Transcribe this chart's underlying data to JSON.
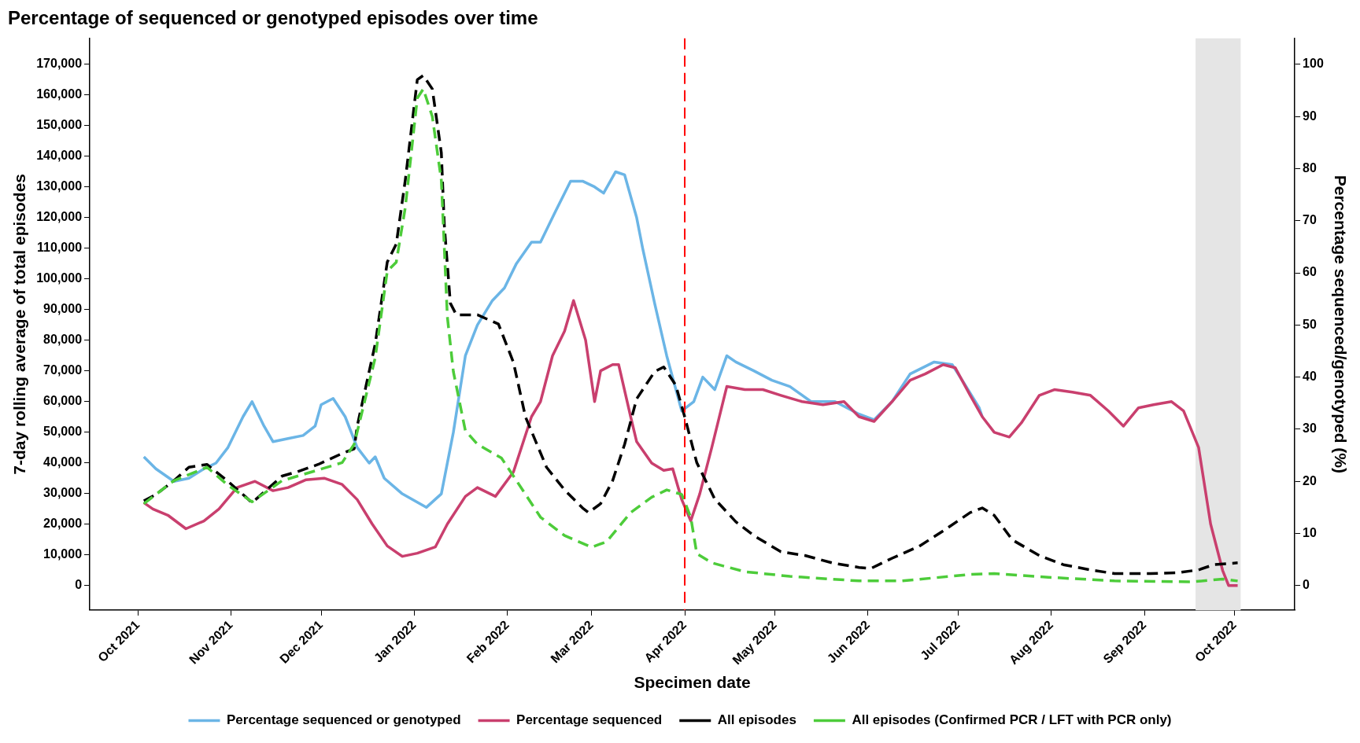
{
  "chart_data": {
    "type": "line",
    "title": "Percentage of sequenced or genotyped episodes over time",
    "xlabel": "Specimen date",
    "ylabel": "7-day rolling average of total episodes",
    "y2label": "Percentage sequenced/genotyped (%)",
    "legend": "bottom",
    "marker": "none",
    "grid": false,
    "xlim": [
      "2021-09-15",
      "2022-10-21"
    ],
    "xticks": [
      {
        "value": "2021-10-01",
        "label": "Oct 2021"
      },
      {
        "value": "2021-11-01",
        "label": "Nov 2021"
      },
      {
        "value": "2021-12-01",
        "label": "Dec 2021"
      },
      {
        "value": "2022-01-01",
        "label": "Jan 2022"
      },
      {
        "value": "2022-02-01",
        "label": "Feb 2022"
      },
      {
        "value": "2022-03-01",
        "label": "Mar 2022"
      },
      {
        "value": "2022-04-01",
        "label": "Apr 2022"
      },
      {
        "value": "2022-05-01",
        "label": "May 2022"
      },
      {
        "value": "2022-06-01",
        "label": "Jun 2022"
      },
      {
        "value": "2022-07-01",
        "label": "Jul 2022"
      },
      {
        "value": "2022-08-01",
        "label": "Aug 2022"
      },
      {
        "value": "2022-09-01",
        "label": "Sep 2022"
      },
      {
        "value": "2022-10-01",
        "label": "Oct 2022"
      }
    ],
    "ylim": [
      -8000,
      178500
    ],
    "yticks": [
      0,
      {
        "value": 10000,
        "label": "10,000"
      },
      {
        "value": 20000,
        "label": "20,000"
      },
      {
        "value": 30000,
        "label": "30,000"
      },
      {
        "value": 40000,
        "label": "40,000"
      },
      {
        "value": 50000,
        "label": "50,000"
      },
      {
        "value": 60000,
        "label": "60,000"
      },
      {
        "value": 70000,
        "label": "70,000"
      },
      {
        "value": 80000,
        "label": "80,000"
      },
      {
        "value": 90000,
        "label": "90,000"
      },
      {
        "value": 100000,
        "label": "100,000"
      },
      {
        "value": 110000,
        "label": "110,000"
      },
      {
        "value": 120000,
        "label": "120,000"
      },
      {
        "value": 130000,
        "label": "130,000"
      },
      {
        "value": 140000,
        "label": "140,000"
      },
      {
        "value": 150000,
        "label": "150,000"
      },
      {
        "value": 160000,
        "label": "160,000"
      },
      {
        "value": 170000,
        "label": "170,000"
      }
    ],
    "y2lim": [
      -4.7,
      105
    ],
    "y2ticks": [
      0,
      10,
      20,
      30,
      40,
      50,
      60,
      70,
      80,
      90,
      100
    ],
    "ref_lines": [
      {
        "axis": "x",
        "value": "2022-04-01",
        "color": "#ff0000",
        "line_style": "dashed"
      }
    ],
    "bands": [
      {
        "axis": "x",
        "from": "2022-09-18",
        "to": "2022-10-03",
        "color": "#e5e5e5"
      }
    ],
    "series": [
      {
        "name": "Percentage sequenced or genotyped",
        "color": "#6bb5e6",
        "axis": "y2",
        "x": [
          "2021-10-03",
          "2021-10-07",
          "2021-10-13",
          "2021-10-18",
          "2021-10-23",
          "2021-10-27",
          "2021-10-31",
          "2021-11-05",
          "2021-11-08",
          "2021-11-12",
          "2021-11-15",
          "2021-11-20",
          "2021-11-25",
          "2021-11-29",
          "2021-12-01",
          "2021-12-05",
          "2021-12-09",
          "2021-12-13",
          "2021-12-17",
          "2021-12-19",
          "2021-12-22",
          "2021-12-28",
          "2022-01-05",
          "2022-01-10",
          "2022-01-14",
          "2022-01-18",
          "2022-01-22",
          "2022-01-27",
          "2022-01-31",
          "2022-02-04",
          "2022-02-09",
          "2022-02-12",
          "2022-02-17",
          "2022-02-22",
          "2022-02-26",
          "2022-03-02",
          "2022-03-05",
          "2022-03-09",
          "2022-03-12",
          "2022-03-16",
          "2022-03-18",
          "2022-03-22",
          "2022-03-26",
          "2022-03-31",
          "2022-04-04",
          "2022-04-07",
          "2022-04-11",
          "2022-04-15",
          "2022-04-18",
          "2022-04-24",
          "2022-04-30",
          "2022-05-06",
          "2022-05-13",
          "2022-05-21",
          "2022-05-29",
          "2022-06-03",
          "2022-06-09",
          "2022-06-15",
          "2022-06-23",
          "2022-06-29",
          "2022-07-03",
          "2022-07-08",
          "2022-07-09"
        ],
        "values": [
          24.7,
          22.4,
          20.0,
          20.6,
          22.4,
          23.5,
          26.5,
          32.4,
          35.3,
          30.6,
          27.6,
          28.2,
          28.8,
          30.6,
          34.7,
          35.9,
          32.4,
          26.5,
          23.5,
          24.7,
          20.6,
          17.6,
          15.0,
          17.6,
          29.4,
          44.1,
          50.0,
          54.7,
          57.1,
          61.8,
          65.9,
          65.9,
          71.8,
          77.6,
          77.6,
          76.5,
          75.3,
          79.4,
          78.8,
          70.6,
          64.7,
          54.1,
          44.1,
          33.5,
          35.3,
          40.0,
          37.6,
          44.1,
          42.9,
          41.2,
          39.4,
          38.2,
          35.3,
          35.3,
          32.9,
          31.8,
          35.3,
          40.6,
          42.9,
          42.4,
          38.8,
          34.1,
          32.4
        ]
      },
      {
        "name": "Percentage sequenced",
        "color": "#c93f6e",
        "axis": "y2",
        "x": [
          "2021-10-03",
          "2021-10-06",
          "2021-10-11",
          "2021-10-17",
          "2021-10-23",
          "2021-10-28",
          "2021-11-03",
          "2021-11-09",
          "2021-11-15",
          "2021-11-20",
          "2021-11-26",
          "2021-12-02",
          "2021-12-08",
          "2021-12-13",
          "2021-12-18",
          "2021-12-23",
          "2021-12-28",
          "2022-01-02",
          "2022-01-08",
          "2022-01-12",
          "2022-01-18",
          "2022-01-22",
          "2022-01-28",
          "2022-02-03",
          "2022-02-09",
          "2022-02-12",
          "2022-02-16",
          "2022-02-20",
          "2022-02-23",
          "2022-02-27",
          "2022-03-02",
          "2022-03-04",
          "2022-03-08",
          "2022-03-10",
          "2022-03-14",
          "2022-03-16",
          "2022-03-21",
          "2022-03-25",
          "2022-03-28",
          "2022-03-31",
          "2022-04-03",
          "2022-04-06",
          "2022-04-10",
          "2022-04-15",
          "2022-04-21",
          "2022-04-27",
          "2022-05-03",
          "2022-05-10",
          "2022-05-17",
          "2022-05-24",
          "2022-05-29",
          "2022-06-03",
          "2022-06-09",
          "2022-06-15",
          "2022-06-20",
          "2022-06-26",
          "2022-06-30",
          "2022-07-05",
          "2022-07-09",
          "2022-07-13",
          "2022-07-18",
          "2022-07-22",
          "2022-07-28",
          "2022-08-02",
          "2022-08-08",
          "2022-08-14",
          "2022-08-20",
          "2022-08-25",
          "2022-08-30",
          "2022-09-04",
          "2022-09-10",
          "2022-09-14",
          "2022-09-19",
          "2022-09-23",
          "2022-09-27",
          "2022-09-29",
          "2022-10-02"
        ],
        "values": [
          15.9,
          14.7,
          13.5,
          10.9,
          12.4,
          14.7,
          18.8,
          20.0,
          18.2,
          18.8,
          20.3,
          20.6,
          19.4,
          16.5,
          11.8,
          7.6,
          5.6,
          6.2,
          7.4,
          11.8,
          17.1,
          18.8,
          17.1,
          21.8,
          32.4,
          35.3,
          44.1,
          48.8,
          54.7,
          47.1,
          35.3,
          41.2,
          42.4,
          42.4,
          32.4,
          27.6,
          23.5,
          22.1,
          22.4,
          16.5,
          12.4,
          17.6,
          26.5,
          38.2,
          37.6,
          37.6,
          36.5,
          35.3,
          34.7,
          35.3,
          32.4,
          31.5,
          35.3,
          39.4,
          40.6,
          42.4,
          41.8,
          36.5,
          32.4,
          29.4,
          28.5,
          31.2,
          36.5,
          37.6,
          37.1,
          36.5,
          33.5,
          30.6,
          34.1,
          34.7,
          35.3,
          33.5,
          26.5,
          11.8,
          2.9,
          0,
          0
        ]
      },
      {
        "name": "All episodes",
        "color": "#000000",
        "line_style": "dashed",
        "x": [
          "2021-10-03",
          "2021-10-07",
          "2021-10-13",
          "2021-10-18",
          "2021-10-24",
          "2021-10-31",
          "2021-11-06",
          "2021-11-08",
          "2021-11-18",
          "2021-11-23",
          "2021-11-30",
          "2021-12-08",
          "2021-12-12",
          "2021-12-13",
          "2021-12-19",
          "2021-12-23",
          "2021-12-26",
          "2021-12-29",
          "2022-01-02",
          "2022-01-04",
          "2022-01-07",
          "2022-01-10",
          "2022-01-11",
          "2022-01-13",
          "2022-01-15",
          "2022-01-22",
          "2022-01-29",
          "2022-02-03",
          "2022-02-07",
          "2022-02-14",
          "2022-02-20",
          "2022-02-26",
          "2022-02-28",
          "2022-03-04",
          "2022-03-08",
          "2022-03-12",
          "2022-03-16",
          "2022-03-22",
          "2022-03-25",
          "2022-03-29",
          "2022-04-01",
          "2022-04-05",
          "2022-04-11",
          "2022-04-18",
          "2022-04-24",
          "2022-05-03",
          "2022-05-11",
          "2022-05-20",
          "2022-05-29",
          "2022-06-02",
          "2022-06-09",
          "2022-06-18",
          "2022-06-26",
          "2022-07-05",
          "2022-07-09",
          "2022-07-13",
          "2022-07-19",
          "2022-07-28",
          "2022-08-05",
          "2022-08-14",
          "2022-08-22",
          "2022-09-03",
          "2022-09-12",
          "2022-09-19",
          "2022-09-24",
          "2022-10-02"
        ],
        "values": [
          27600,
          29700,
          34200,
          38600,
          39500,
          34000,
          28800,
          27000,
          35700,
          37100,
          39500,
          43100,
          44600,
          52000,
          78800,
          105500,
          111400,
          132200,
          165000,
          166400,
          162000,
          141200,
          117400,
          92100,
          88300,
          88300,
          85300,
          72800,
          55000,
          38600,
          31200,
          25300,
          23800,
          26700,
          34200,
          46100,
          60900,
          69800,
          71300,
          65400,
          55000,
          40100,
          28200,
          20800,
          16300,
          11000,
          9800,
          7400,
          5900,
          5600,
          8900,
          12800,
          17800,
          23800,
          25300,
          22900,
          14900,
          9800,
          6800,
          5100,
          3900,
          3900,
          4200,
          5100,
          6800,
          7400
        ]
      },
      {
        "name": "All episodes (Confirmed PCR / LFT with PCR only)",
        "color": "#4dcc3a",
        "line_style": "dashed",
        "x": [
          "2021-10-03",
          "2021-10-13",
          "2021-10-24",
          "2021-10-31",
          "2021-11-08",
          "2021-11-18",
          "2021-11-30",
          "2021-12-08",
          "2021-12-12",
          "2021-12-19",
          "2021-12-23",
          "2021-12-26",
          "2021-12-29",
          "2022-01-02",
          "2022-01-04",
          "2022-01-07",
          "2022-01-10",
          "2022-01-12",
          "2022-01-14",
          "2022-01-18",
          "2022-01-22",
          "2022-01-30",
          "2022-02-03",
          "2022-02-12",
          "2022-02-20",
          "2022-03-01",
          "2022-03-06",
          "2022-03-14",
          "2022-03-21",
          "2022-03-26",
          "2022-03-31",
          "2022-04-03",
          "2022-04-05",
          "2022-04-10",
          "2022-04-21",
          "2022-05-06",
          "2022-05-29",
          "2022-06-12",
          "2022-07-05",
          "2022-07-13",
          "2022-07-31",
          "2022-08-22",
          "2022-09-17",
          "2022-09-27",
          "2022-10-02"
        ],
        "values": [
          26700,
          34200,
          38600,
          32700,
          27300,
          34200,
          37700,
          40100,
          46100,
          74300,
          102500,
          105500,
          123300,
          159000,
          162000,
          153000,
          132200,
          87700,
          69800,
          50500,
          46100,
          41600,
          35700,
          22300,
          16300,
          12500,
          14300,
          23800,
          28800,
          31200,
          29700,
          22300,
          10400,
          7400,
          4500,
          3000,
          1500,
          1500,
          3600,
          3900,
          2700,
          1500,
          1200,
          2100,
          1500
        ]
      }
    ]
  }
}
